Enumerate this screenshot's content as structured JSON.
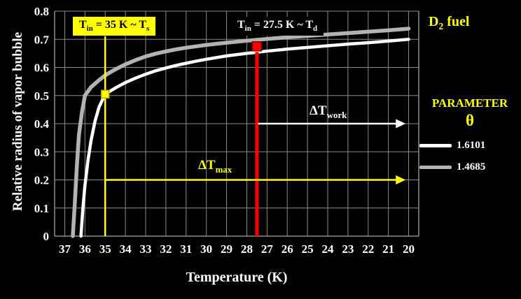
{
  "chart_data": {
    "type": "line",
    "title": "",
    "xlabel": "Temperature (K)",
    "ylabel": "Relative  radius of vapor bubble",
    "x_axis_reversed": true,
    "x_ticks": [
      37,
      36,
      35,
      34,
      33,
      32,
      31,
      30,
      29,
      28,
      27,
      26,
      25,
      24,
      23,
      22,
      21,
      20
    ],
    "y_ticks": [
      0,
      0.1,
      0.2,
      0.3,
      0.4,
      0.5,
      0.6,
      0.7,
      0.8
    ],
    "ylim": [
      0,
      0.8
    ],
    "grid": true,
    "legend_position": "right",
    "colors": {
      "grid": "#8c8c8c",
      "axis_text": "#ffffff",
      "background": "#000000",
      "accent_yellow": "#ffff00",
      "accent_red": "#ff0000"
    },
    "series": [
      {
        "name": "1.6101",
        "color": "#ffffff",
        "width": 4.5,
        "points": [
          [
            36.2,
            0
          ],
          [
            36.1,
            0.1
          ],
          [
            36.0,
            0.18
          ],
          [
            35.85,
            0.27
          ],
          [
            35.7,
            0.34
          ],
          [
            35.5,
            0.41
          ],
          [
            35.3,
            0.46
          ],
          [
            35.0,
            0.505
          ],
          [
            34.5,
            0.527
          ],
          [
            34.0,
            0.546
          ],
          [
            33.5,
            0.562
          ],
          [
            33.0,
            0.576
          ],
          [
            32.5,
            0.588
          ],
          [
            32.0,
            0.598
          ],
          [
            31.5,
            0.607
          ],
          [
            31.0,
            0.615
          ],
          [
            30.5,
            0.622
          ],
          [
            30.0,
            0.629
          ],
          [
            29.0,
            0.641
          ],
          [
            28.0,
            0.65
          ],
          [
            27.0,
            0.658
          ],
          [
            26.0,
            0.665
          ],
          [
            25.0,
            0.671
          ],
          [
            24.0,
            0.677
          ],
          [
            23.0,
            0.683
          ],
          [
            22.0,
            0.688
          ],
          [
            21.0,
            0.694
          ],
          [
            20.0,
            0.7
          ]
        ]
      },
      {
        "name": "1.4685",
        "color": "#b3b3b3",
        "width": 5.5,
        "points": [
          [
            36.6,
            0
          ],
          [
            36.5,
            0.12
          ],
          [
            36.4,
            0.25
          ],
          [
            36.3,
            0.36
          ],
          [
            36.15,
            0.44
          ],
          [
            36.0,
            0.5
          ],
          [
            35.7,
            0.53
          ],
          [
            35.3,
            0.555
          ],
          [
            35.0,
            0.572
          ],
          [
            34.5,
            0.593
          ],
          [
            34.0,
            0.611
          ],
          [
            33.5,
            0.626
          ],
          [
            33.0,
            0.639
          ],
          [
            32.5,
            0.649
          ],
          [
            32.0,
            0.657
          ],
          [
            31.5,
            0.664
          ],
          [
            31.0,
            0.67
          ],
          [
            30.0,
            0.68
          ],
          [
            29.0,
            0.688
          ],
          [
            28.0,
            0.695
          ],
          [
            27.0,
            0.701
          ],
          [
            26.0,
            0.707
          ],
          [
            25.0,
            0.712
          ],
          [
            24.0,
            0.717
          ],
          [
            23.0,
            0.722
          ],
          [
            22.0,
            0.727
          ],
          [
            21.0,
            0.732
          ],
          [
            20.0,
            0.738
          ]
        ]
      }
    ],
    "markers": [
      {
        "x": 35,
        "y": 0.505,
        "color": "#ffff00",
        "stroke": "#b0b000",
        "size": 11,
        "shape": "square",
        "name": "marker-35k"
      },
      {
        "x": 27.5,
        "y": 0.675,
        "color": "#ff0000",
        "stroke": "#7a0000",
        "size": 13,
        "shape": "square",
        "name": "marker-27-5k"
      }
    ],
    "vlines": [
      {
        "x": 35,
        "y0": 0,
        "y1": 0.71,
        "color": "#ffff00",
        "width": 2.5,
        "name": "vline-35k"
      },
      {
        "x": 27.5,
        "y0": 0,
        "y1": 0.655,
        "color": "#ff0000",
        "width": 5,
        "name": "vline-27-5k"
      }
    ],
    "arrows": [
      {
        "y": 0.4,
        "x0": 27.45,
        "x1": 20.15,
        "color": "#ffffff",
        "width": 2.5,
        "name": "delta-t-work-arrow"
      },
      {
        "y": 0.2,
        "x0": 35,
        "x1": 20.15,
        "color": "#ffff00",
        "width": 2.5,
        "name": "delta-t-max-arrow"
      }
    ]
  },
  "annotations": {
    "t35": {
      "base1": "T",
      "sub1": "in",
      "base2": " = 35 K ~ T",
      "sub2": "s",
      "bg": "#ffff00",
      "fg": "#000000"
    },
    "t275": {
      "base1": "T",
      "sub1": "in",
      "base2": " = 27.5 K ~ T",
      "sub2": "d",
      "bg": "#000000",
      "fg": "#ffffff"
    }
  },
  "arrow_labels": {
    "work": {
      "base": "ΔT",
      "sub": "work",
      "color": "#ffffff"
    },
    "max": {
      "base": "ΔT",
      "sub": "max",
      "color": "#ffff00"
    }
  },
  "right_panel": {
    "fuel_base": "D",
    "fuel_sub": "2",
    "fuel_rest": " fuel",
    "legend_title": "PARAMETER",
    "legend_symbol": "θ",
    "legend_entries": [
      {
        "label": "1.6101",
        "color": "#ffffff"
      },
      {
        "label": "1.4685",
        "color": "#b3b3b3"
      }
    ]
  }
}
